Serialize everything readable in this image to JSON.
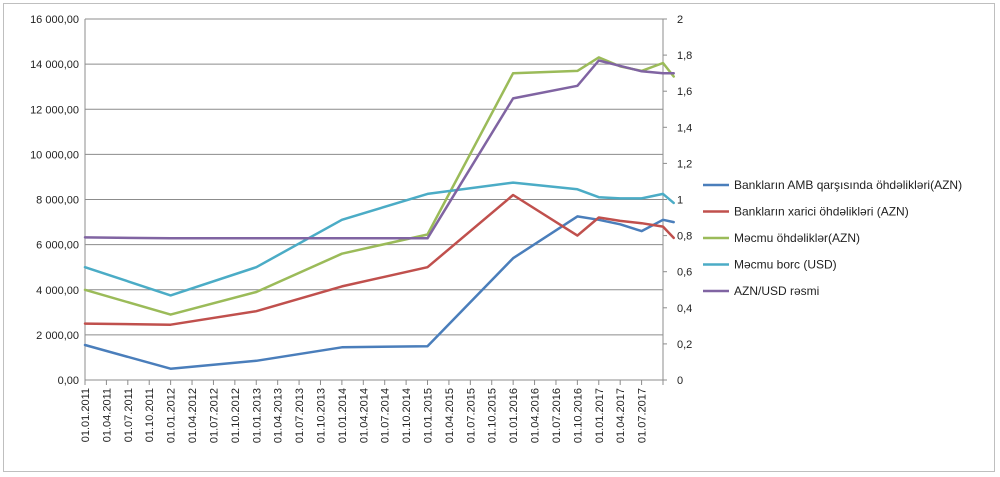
{
  "chart_data": {
    "type": "line",
    "categories": [
      "01.01.2011",
      "01.04.2011",
      "01.07.2011",
      "01.10.2011",
      "01.01.2012",
      "01.04.2012",
      "01.07.2012",
      "01.10.2012",
      "01.01.2013",
      "01.04.2013",
      "01.07.2013",
      "01.10.2013",
      "01.01.2014",
      "01.04.2014",
      "01.07.2014",
      "01.10.2014",
      "01.01.2015",
      "01.04.2015",
      "01.07.2015",
      "01.10.2015",
      "01.01.2016",
      "01.04.2016",
      "01.07.2016",
      "01.10.2016",
      "01.01.2017",
      "01.04.2017",
      "01.07.2017"
    ],
    "y_left": {
      "ylim": [
        0,
        16000
      ],
      "ticks": [
        "0,00",
        "2 000,00",
        "4 000,00",
        "6 000,00",
        "8 000,00",
        "10 000,00",
        "12 000,00",
        "14 000,00",
        "16 000,00"
      ]
    },
    "y_right": {
      "ylim": [
        0,
        2
      ],
      "ticks": [
        "0",
        "0,2",
        "0,4",
        "0,6",
        "0,8",
        "1",
        "1,2",
        "1,4",
        "1,6",
        "1,8",
        "2"
      ]
    },
    "grid": "horizontal",
    "legend": "right",
    "series": [
      {
        "name": "Bankların AMB qarşısında öhdəlikləri(AZN)",
        "color": "#4a7ebb",
        "axis": "left",
        "points": [
          [
            0,
            1550
          ],
          [
            4,
            500
          ],
          [
            8,
            850
          ],
          [
            12,
            1450
          ],
          [
            16,
            1500
          ],
          [
            20,
            5400
          ],
          [
            23,
            7250
          ],
          [
            24,
            7100
          ],
          [
            25,
            6900
          ],
          [
            26,
            6600
          ],
          [
            27,
            7100
          ],
          [
            27.5,
            7000
          ]
        ]
      },
      {
        "name": "Bankların xarici öhdəlikləri (AZN)",
        "color": "#c0504d",
        "axis": "left",
        "points": [
          [
            0,
            2500
          ],
          [
            4,
            2450
          ],
          [
            8,
            3050
          ],
          [
            12,
            4150
          ],
          [
            16,
            5000
          ],
          [
            20,
            8200
          ],
          [
            23,
            6400
          ],
          [
            24,
            7200
          ],
          [
            25,
            7050
          ],
          [
            26,
            6950
          ],
          [
            27,
            6800
          ],
          [
            27.5,
            6300
          ]
        ]
      },
      {
        "name": "Məcmu öhdəliklər(AZN)",
        "color": "#9bbb59",
        "axis": "left",
        "points": [
          [
            0,
            4000
          ],
          [
            4,
            2900
          ],
          [
            8,
            3900
          ],
          [
            12,
            5600
          ],
          [
            16,
            6450
          ],
          [
            20,
            13600
          ],
          [
            23,
            13700
          ],
          [
            24,
            14300
          ],
          [
            25,
            13900
          ],
          [
            26,
            13700
          ],
          [
            27,
            14050
          ],
          [
            27.5,
            13450
          ]
        ]
      },
      {
        "name": "Məcmu borc (USD)",
        "color": "#4bacc6",
        "axis": "left",
        "points": [
          [
            0,
            5000
          ],
          [
            4,
            3750
          ],
          [
            8,
            5000
          ],
          [
            12,
            7100
          ],
          [
            16,
            8250
          ],
          [
            20,
            8750
          ],
          [
            23,
            8450
          ],
          [
            24,
            8100
          ],
          [
            25,
            8050
          ],
          [
            26,
            8050
          ],
          [
            27,
            8250
          ],
          [
            27.5,
            7850
          ]
        ]
      },
      {
        "name": "AZN/USD rəsmi",
        "color": "#8064a2",
        "axis": "right",
        "points": [
          [
            0,
            0.79
          ],
          [
            4,
            0.785
          ],
          [
            8,
            0.785
          ],
          [
            12,
            0.785
          ],
          [
            16,
            0.785
          ],
          [
            20,
            1.56
          ],
          [
            23,
            1.63
          ],
          [
            24,
            1.77
          ],
          [
            25,
            1.74
          ],
          [
            26,
            1.71
          ],
          [
            27,
            1.7
          ],
          [
            27.5,
            1.7
          ]
        ]
      }
    ]
  }
}
